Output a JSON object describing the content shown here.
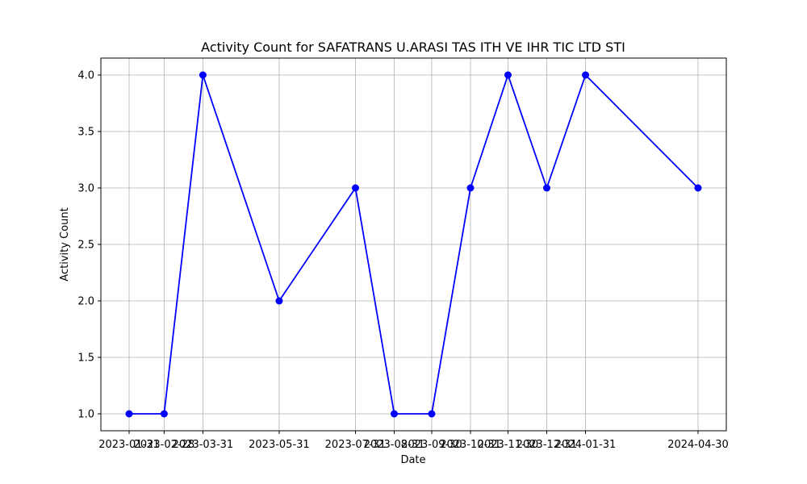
{
  "chart_data": {
    "type": "line",
    "title": "Activity Count for SAFATRANS U.ARASI TAS ITH VE IHR TIC LTD STI",
    "xlabel": "Date",
    "ylabel": "Activity Count",
    "categories": [
      "2023-01-31",
      "2023-02-28",
      "2023-03-31",
      "2023-05-31",
      "2023-07-31",
      "2023-08-31",
      "2023-09-30",
      "2023-10-31",
      "2023-11-30",
      "2023-12-31",
      "2024-01-31",
      "2024-04-30"
    ],
    "series": [
      {
        "values": [
          1,
          1,
          4,
          2,
          3,
          1,
          1,
          3,
          4,
          3,
          4,
          3
        ],
        "color": "#0000ff",
        "marker": "circle"
      }
    ],
    "ylim": [
      0.85,
      4.15
    ],
    "yticks": [
      "1.0",
      "1.5",
      "2.0",
      "2.5",
      "3.0",
      "3.5",
      "4.0"
    ],
    "grid": true,
    "legend": "none"
  }
}
